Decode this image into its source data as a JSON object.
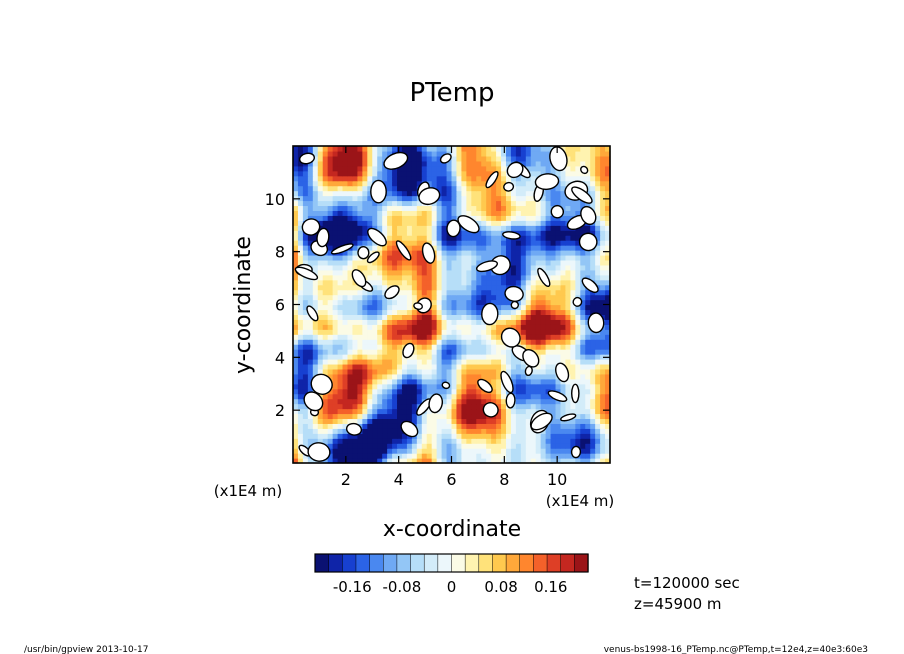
{
  "footer": {
    "left": "/usr/bin/gpview   2013-10-17",
    "right": "venus-bs1998-16_PTemp.nc@PTemp,t=12e4,z=40e3:60e3"
  },
  "annotations": {
    "time": "t=120000 sec",
    "height": "z=45900  m"
  },
  "chart_data": {
    "type": "heatmap",
    "title": "PTemp",
    "xlabel": "x-coordinate",
    "ylabel": "y-coordinate",
    "x_unit_label": "(x1E4 m)",
    "y_unit_label": "(x1E4 m)",
    "xlim": [
      0,
      12
    ],
    "ylim": [
      0,
      12
    ],
    "xticks": [
      2,
      4,
      6,
      8,
      10
    ],
    "yticks": [
      2,
      4,
      6,
      8,
      10
    ],
    "colorbar": {
      "vmin": -0.22,
      "vmax": 0.22,
      "ticks": [
        -0.16,
        -0.08,
        0,
        0.08,
        0.16
      ],
      "tick_labels": [
        "-0.16",
        "-0.08",
        "0",
        "0.08",
        "0.16"
      ],
      "colors": [
        "#0a1172",
        "#0f24a8",
        "#1740d0",
        "#2b63e6",
        "#4a88f0",
        "#6fa9f4",
        "#93c6f6",
        "#b6def8",
        "#d3ecf9",
        "#ecf7fb",
        "#fbfbe6",
        "#fff3b0",
        "#ffe27a",
        "#ffc94e",
        "#ffa83a",
        "#ff862e",
        "#f4612a",
        "#de3f26",
        "#c42720",
        "#9b1418"
      ]
    },
    "grid": false,
    "legend": "colorbar bottom"
  }
}
